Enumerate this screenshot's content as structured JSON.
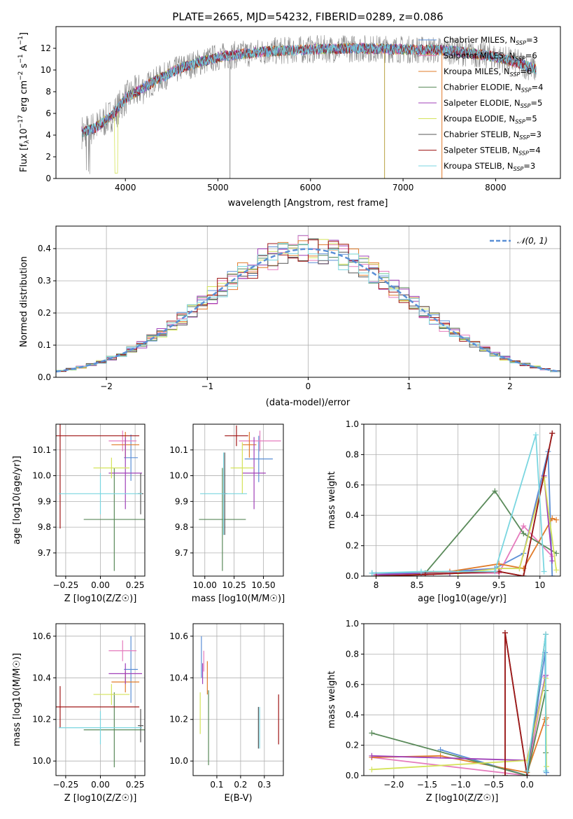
{
  "page_title": "PLATE=2665, MJD=54232, FIBERID=0289, z=0.086",
  "models": [
    {
      "name": "Chabrier MILES",
      "n": "3",
      "color": "#5b8fd6"
    },
    {
      "name": "Salpeter MILES",
      "n": "6",
      "color": "#e57bbd"
    },
    {
      "name": "Kroupa MILES",
      "n": "6",
      "color": "#e07b2a"
    },
    {
      "name": "Chabrier ELODIE",
      "n": "4",
      "color": "#5a8a5a"
    },
    {
      "name": "Salpeter ELODIE",
      "n": "5",
      "color": "#a040b8"
    },
    {
      "name": "Kroupa ELODIE",
      "n": "5",
      "color": "#d4e35a"
    },
    {
      "name": "Chabrier STELIB",
      "n": "3",
      "color": "#555555"
    },
    {
      "name": "Salpeter STELIB",
      "n": "4",
      "color": "#a01818"
    },
    {
      "name": "Kroupa STELIB",
      "n": "3",
      "color": "#7ad6e0"
    }
  ],
  "chart_data": [
    {
      "type": "line",
      "title": "PLATE=2665, MJD=54232, FIBERID=0289, z=0.086",
      "xlabel": "wavelength [Angstrom, rest frame]",
      "ylabel": "Flux [f_λ 10^-17 erg cm^-2 s^-1 A^-1]",
      "xlim": [
        3250,
        8700
      ],
      "ylim": [
        0,
        14
      ],
      "xticks": [
        4000,
        5000,
        6000,
        7000,
        8000
      ],
      "yticks": [
        0,
        2,
        4,
        6,
        8,
        10,
        12
      ],
      "legend": "upper right",
      "continuum": [
        [
          3550,
          4.3
        ],
        [
          3700,
          4.8
        ],
        [
          3900,
          6.2
        ],
        [
          4000,
          7.4
        ],
        [
          4300,
          8.9
        ],
        [
          4600,
          10.2
        ],
        [
          5000,
          11.2
        ],
        [
          5500,
          11.7
        ],
        [
          6000,
          11.9
        ],
        [
          6500,
          12.0
        ],
        [
          7000,
          11.9
        ],
        [
          7500,
          11.8
        ],
        [
          8000,
          11.2
        ],
        [
          8300,
          10.5
        ],
        [
          8450,
          10.0
        ]
      ],
      "spikes": [
        [
          5130,
          0
        ],
        [
          6800,
          0
        ],
        [
          7420,
          0
        ]
      ]
    },
    {
      "type": "histogram",
      "xlabel": "(data-model)/error",
      "ylabel": "Normed distribution",
      "xlim": [
        -2.5,
        2.5
      ],
      "ylim": [
        0,
        0.47
      ],
      "xticks": [
        -2,
        -1,
        0,
        1,
        2
      ],
      "yticks": [
        0.0,
        0.1,
        0.2,
        0.3,
        0.4
      ],
      "legend": "upper right",
      "legend_label": "N(0,1)",
      "reference_curve": "gaussian(0,1)"
    },
    {
      "type": "scatter",
      "xlabel": "Z [log10(Z/Z☉)]",
      "ylabel": "age [log10(age/yr)]",
      "xlim": [
        -0.32,
        0.32
      ],
      "ylim": [
        9.61,
        10.2
      ],
      "xticks": [
        -0.25,
        0.0,
        0.25
      ],
      "xticklabels": [
        "−0.25",
        "0.00",
        "0.25"
      ],
      "yticks": [
        9.7,
        9.8,
        9.9,
        10.0,
        10.1
      ],
      "points": [
        {
          "x": 0.22,
          "y": 10.07,
          "xerr": 0.05,
          "yerr": 0.09
        },
        {
          "x": 0.16,
          "y": 10.135,
          "xerr": 0.1,
          "yerr": 0.04
        },
        {
          "x": 0.18,
          "y": 10.12,
          "xerr": 0.1,
          "yerr": 0.05
        },
        {
          "x": 0.1,
          "y": 9.83,
          "xerr": 0.22,
          "yerr": 0.2
        },
        {
          "x": 0.18,
          "y": 10.01,
          "xerr": 0.12,
          "yerr": 0.14
        },
        {
          "x": 0.08,
          "y": 10.03,
          "xerr": 0.13,
          "yerr": 0.04
        },
        {
          "x": 0.29,
          "y": 9.93,
          "xerr": 0.02,
          "yerr": 0.08
        },
        {
          "x": -0.29,
          "y": 10.155,
          "xerr": 0.57,
          "yerr": 0.36
        },
        {
          "x": 0.0,
          "y": 9.93,
          "xerr": 0.3,
          "yerr": 0.08
        }
      ]
    },
    {
      "type": "scatter",
      "xlabel": "mass [log10(M/M☉)]",
      "ylabel": "",
      "xlim": [
        9.9,
        10.67
      ],
      "ylim": [
        9.61,
        10.2
      ],
      "xticks": [
        10.0,
        10.25,
        10.5
      ],
      "xticklabels": [
        "10.00",
        "10.25",
        "10.50"
      ],
      "yticks": [
        9.7,
        9.8,
        9.9,
        10.0,
        10.1
      ],
      "points": [
        {
          "x": 10.46,
          "y": 10.065,
          "xerr": 0.12,
          "yerr": 0.09
        },
        {
          "x": 10.47,
          "y": 10.135,
          "xerr": 0.18,
          "yerr": 0.04
        },
        {
          "x": 10.38,
          "y": 10.12,
          "xerr": 0.06,
          "yerr": 0.05
        },
        {
          "x": 10.15,
          "y": 9.83,
          "xerr": 0.2,
          "yerr": 0.2
        },
        {
          "x": 10.42,
          "y": 10.01,
          "xerr": 0.1,
          "yerr": 0.14
        },
        {
          "x": 10.32,
          "y": 10.03,
          "xerr": 0.1,
          "yerr": 0.1
        },
        {
          "x": 10.17,
          "y": 9.93,
          "xerr": 0.02,
          "yerr": 0.16
        },
        {
          "x": 10.27,
          "y": 10.155,
          "xerr": 0.1,
          "yerr": 0.04
        },
        {
          "x": 10.16,
          "y": 9.93,
          "xerr": 0.2,
          "yerr": 0.16
        }
      ]
    },
    {
      "type": "line",
      "xlabel": "age [log10(age/yr)]",
      "ylabel": "mass weight",
      "xlim": [
        7.85,
        10.25
      ],
      "ylim": [
        0,
        1
      ],
      "xticks": [
        8.0,
        8.5,
        9.0,
        9.5,
        10.0
      ],
      "yticks": [
        0.0,
        0.2,
        0.4,
        0.6,
        0.8,
        1.0
      ],
      "series": [
        {
          "x": [
            7.95,
            8.55,
            9.45,
            9.8,
            10.1,
            10.15
          ],
          "y": [
            0.02,
            0.02,
            0.05,
            0.15,
            0.82,
            0.0
          ]
        },
        {
          "x": [
            8.0,
            8.7,
            9.5,
            9.8,
            10.15
          ],
          "y": [
            0.0,
            0.02,
            0.02,
            0.33,
            0.13
          ]
        },
        {
          "x": [
            8.0,
            8.9,
            9.5,
            9.8,
            10.15,
            10.2
          ],
          "y": [
            0.0,
            0.03,
            0.08,
            0.05,
            0.38,
            0.37
          ]
        },
        {
          "x": [
            8.0,
            8.6,
            9.45,
            9.8,
            10.2
          ],
          "y": [
            0.0,
            0.02,
            0.56,
            0.28,
            0.15
          ]
        },
        {
          "x": [
            8.0,
            8.9,
            9.5,
            9.75,
            10.05,
            10.15
          ],
          "y": [
            0.01,
            0.02,
            0.05,
            0.05,
            0.66,
            0.1
          ]
        },
        {
          "x": [
            8.0,
            9.0,
            9.5,
            9.75,
            10.05,
            10.2
          ],
          "y": [
            0.0,
            0.02,
            0.05,
            0.05,
            0.65,
            0.04
          ]
        },
        {
          "x": [
            8.0,
            8.6,
            9.5,
            9.8,
            10.15
          ],
          "y": [
            0.0,
            0.01,
            0.03,
            0.0,
            0.94
          ]
        },
        {
          "x": [
            8.0,
            8.6,
            9.5,
            9.8,
            10.15
          ],
          "y": [
            0.0,
            0.01,
            0.03,
            0.0,
            0.94
          ]
        },
        {
          "x": [
            7.95,
            8.55,
            9.45,
            9.95,
            10.05
          ],
          "y": [
            0.02,
            0.03,
            0.03,
            0.93,
            0.03
          ]
        }
      ]
    },
    {
      "type": "scatter",
      "xlabel": "Z [log10(Z/Z☉)]",
      "ylabel": "mass [log10(M/M☉)]",
      "xlim": [
        -0.32,
        0.32
      ],
      "ylim": [
        9.93,
        10.66
      ],
      "xticks": [
        -0.25,
        0.0,
        0.25
      ],
      "xticklabels": [
        "−0.25",
        "0.00",
        "0.25"
      ],
      "yticks": [
        10.0,
        10.2,
        10.4,
        10.6
      ],
      "points": [
        {
          "x": 0.22,
          "y": 10.44,
          "xerr": 0.05,
          "yerr": 0.16
        },
        {
          "x": 0.16,
          "y": 10.53,
          "xerr": 0.1,
          "yerr": 0.05
        },
        {
          "x": 0.18,
          "y": 10.38,
          "xerr": 0.1,
          "yerr": 0.05
        },
        {
          "x": 0.1,
          "y": 10.15,
          "xerr": 0.22,
          "yerr": 0.18
        },
        {
          "x": 0.18,
          "y": 10.42,
          "xerr": 0.12,
          "yerr": 0.05
        },
        {
          "x": 0.08,
          "y": 10.32,
          "xerr": 0.13,
          "yerr": 0.05
        },
        {
          "x": 0.29,
          "y": 10.17,
          "xerr": 0.02,
          "yerr": 0.08
        },
        {
          "x": -0.29,
          "y": 10.26,
          "xerr": 0.57,
          "yerr": 0.1
        },
        {
          "x": 0.0,
          "y": 10.16,
          "xerr": 0.3,
          "yerr": 0.08
        }
      ]
    },
    {
      "type": "scatter",
      "xlabel": "E(B-V)",
      "ylabel": "",
      "xlim": [
        0.0,
        0.38
      ],
      "ylim": [
        9.93,
        10.66
      ],
      "xticks": [
        0.1,
        0.2,
        0.3
      ],
      "yticks": [
        10.0,
        10.2,
        10.4,
        10.6
      ],
      "points": [
        {
          "x": 0.035,
          "y": 10.5,
          "yerr": 0.1
        },
        {
          "x": 0.045,
          "y": 10.48,
          "yerr": 0.05
        },
        {
          "x": 0.06,
          "y": 10.4,
          "yerr": 0.08
        },
        {
          "x": 0.065,
          "y": 10.16,
          "yerr": 0.18
        },
        {
          "x": 0.04,
          "y": 10.42,
          "yerr": 0.05
        },
        {
          "x": 0.03,
          "y": 10.23,
          "yerr": 0.1
        },
        {
          "x": 0.275,
          "y": 10.16,
          "yerr": 0.1
        },
        {
          "x": 0.36,
          "y": 10.2,
          "yerr": 0.12
        },
        {
          "x": 0.28,
          "y": 10.16,
          "yerr": 0.1
        }
      ]
    },
    {
      "type": "line",
      "xlabel": "Z [log10(Z/Z☉)]",
      "ylabel": "mass weight",
      "xlim": [
        -2.45,
        0.5
      ],
      "ylim": [
        0,
        1
      ],
      "xticks": [
        -2.0,
        -1.5,
        -1.0,
        -0.5,
        0.0
      ],
      "xticklabels": [
        "−2.0",
        "−1.5",
        "−1.0",
        "−0.5",
        "0.0"
      ],
      "yticks": [
        0.0,
        0.2,
        0.4,
        0.6,
        0.8,
        1.0
      ],
      "series": [
        {
          "x": [
            -1.3,
            0.0,
            0.27,
            0.29
          ],
          "y": [
            0.17,
            0.0,
            0.81,
            0.02
          ]
        },
        {
          "x": [
            -2.33,
            0.0,
            0.27,
            0.29
          ],
          "y": [
            0.12,
            0.0,
            0.65,
            0.33
          ]
        },
        {
          "x": [
            -2.33,
            -1.3,
            0.0,
            0.27,
            0.29
          ],
          "y": [
            0.12,
            0.13,
            0.02,
            0.37,
            0.38
          ]
        },
        {
          "x": [
            -2.33,
            0.0,
            0.28,
            0.28
          ],
          "y": [
            0.28,
            0.0,
            0.56,
            0.15
          ]
        },
        {
          "x": [
            -2.33,
            0.0,
            0.28
          ],
          "y": [
            0.13,
            0.1,
            0.66
          ]
        },
        {
          "x": [
            -2.33,
            0.0,
            0.28,
            0.29
          ],
          "y": [
            0.04,
            0.1,
            0.64,
            0.06
          ]
        },
        {
          "x": [
            -0.33,
            -0.33,
            0.0,
            0.28
          ],
          "y": [
            0.0,
            0.94,
            0.0,
            0.93
          ]
        },
        {
          "x": [
            -0.33,
            -0.33,
            0.0
          ],
          "y": [
            0.0,
            0.94,
            0.0
          ]
        },
        {
          "x": [
            0.0,
            0.28,
            0.28
          ],
          "y": [
            0.03,
            0.93,
            0.03
          ]
        }
      ]
    }
  ]
}
